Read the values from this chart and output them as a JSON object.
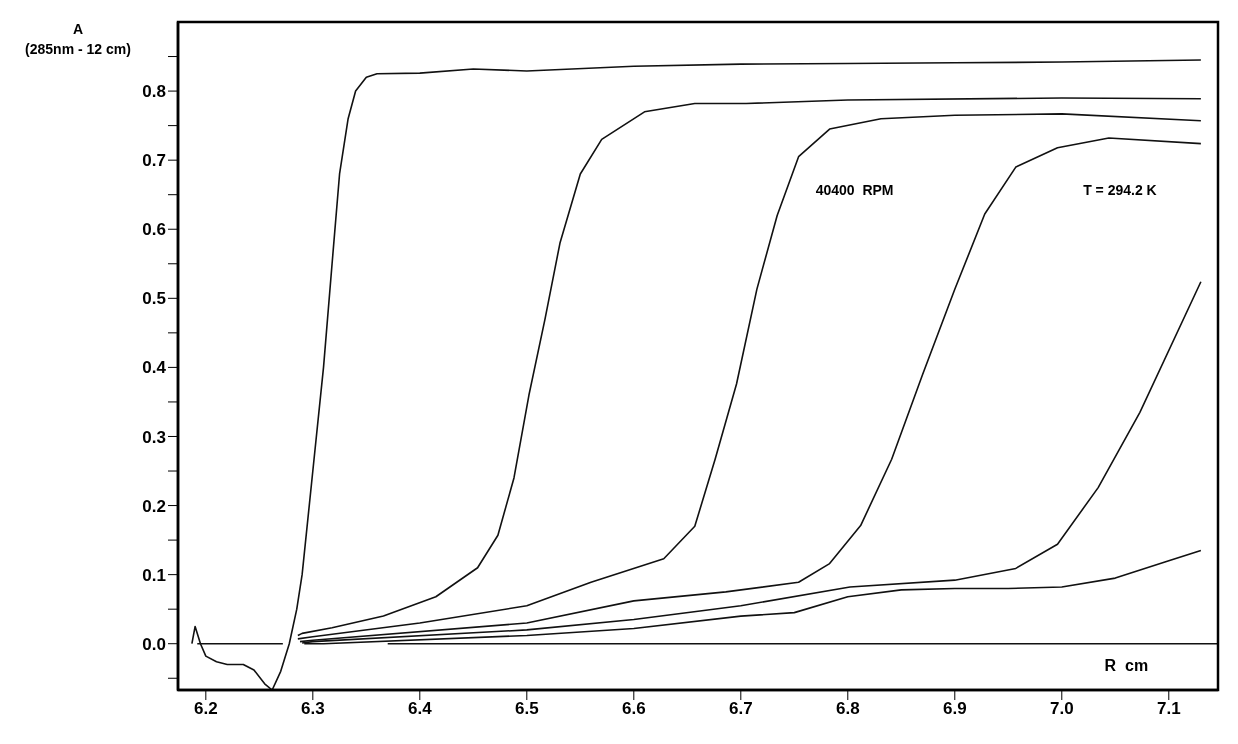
{
  "chart_data": {
    "type": "line",
    "xlabel": "R  cm",
    "ylabel": "A (285nm - 12 cm)",
    "annotations": [
      "40400  RPM",
      "T = 294.2 K"
    ],
    "xlim": [
      6.174,
      7.146
    ],
    "xticks": [
      6.2,
      6.3,
      6.4,
      6.5,
      6.6,
      6.7,
      6.8,
      6.9,
      {
        "value": 7,
        "label": "7.0"
      },
      7.1
    ],
    "ylim": [
      -0.067,
      0.9
    ],
    "yticks": [
      {
        "value": -0.05,
        "label": null
      },
      {
        "value": 0,
        "label": "0.0"
      },
      {
        "value": 0.05,
        "label": null
      },
      0.1,
      {
        "value": 0.15,
        "label": null
      },
      0.2,
      {
        "value": 0.25,
        "label": null
      },
      0.3,
      {
        "value": 0.35,
        "label": null
      },
      0.4,
      {
        "value": 0.45,
        "label": null
      },
      0.5,
      {
        "value": 0.55,
        "label": null
      },
      0.6,
      {
        "value": 0.65,
        "label": null
      },
      0.7,
      {
        "value": 0.75,
        "label": null
      },
      0.8,
      {
        "value": 0.85,
        "label": null
      }
    ],
    "grid": false,
    "legend": false,
    "marker": "none",
    "line_style": "solid",
    "series": [
      {
        "color": "#111111",
        "x": [
          6.192,
          6.272,
          6.3,
          6.37,
          7.146
        ],
        "values": [
          0,
          0,
          null,
          0,
          0
        ]
      },
      {
        "color": "#111111",
        "x": [
          6.187,
          6.19,
          6.195,
          6.2,
          6.21,
          6.22,
          6.235,
          6.245,
          6.255,
          6.262,
          6.27,
          6.278,
          6.285,
          6.29,
          6.3,
          6.31,
          6.318,
          6.325,
          6.333,
          6.34,
          6.35,
          6.36,
          6.4,
          6.45,
          6.5,
          6.6,
          6.7,
          6.8,
          6.9,
          7.0,
          7.13
        ],
        "values": [
          0,
          0.025,
          0,
          -0.018,
          -0.026,
          -0.03,
          -0.03,
          -0.038,
          -0.058,
          -0.067,
          -0.04,
          0,
          0.05,
          0.1,
          0.25,
          0.4,
          0.55,
          0.68,
          0.76,
          0.8,
          0.82,
          0.825,
          0.826,
          0.832,
          0.829,
          0.836,
          0.839,
          0.84,
          0.841,
          0.842,
          0.845
        ]
      },
      {
        "color": "#111111",
        "x": [
          6.286,
          6.29,
          6.318,
          6.366,
          6.415,
          6.454,
          6.473,
          6.488,
          6.502,
          6.517,
          6.531,
          6.55,
          6.57,
          6.61,
          6.657,
          6.705,
          6.8,
          7.0,
          7.13
        ],
        "values": [
          0.012,
          0.015,
          0.023,
          0.04,
          0.068,
          0.11,
          0.157,
          0.24,
          0.36,
          0.47,
          0.58,
          0.68,
          0.73,
          0.77,
          0.782,
          0.782,
          0.787,
          0.79,
          0.789
        ]
      },
      {
        "color": "#111111",
        "x": [
          6.286,
          6.3,
          6.4,
          6.5,
          6.56,
          6.628,
          6.657,
          6.676,
          6.696,
          6.715,
          6.734,
          6.754,
          6.783,
          6.831,
          6.9,
          7.0,
          7.13
        ],
        "values": [
          0.007,
          0.01,
          0.03,
          0.055,
          0.089,
          0.123,
          0.17,
          0.267,
          0.376,
          0.513,
          0.62,
          0.705,
          0.745,
          0.76,
          0.765,
          0.767,
          0.757
        ]
      },
      {
        "color": "#111111",
        "x": [
          6.288,
          6.3,
          6.5,
          6.6,
          6.686,
          6.754,
          6.783,
          6.812,
          6.841,
          6.87,
          6.9,
          6.928,
          6.957,
          6.996,
          7.044,
          7.13
        ],
        "values": [
          0.003,
          0.005,
          0.03,
          0.062,
          0.075,
          0.089,
          0.116,
          0.171,
          0.267,
          0.39,
          0.513,
          0.622,
          0.69,
          0.718,
          0.732,
          0.724
        ]
      },
      {
        "color": "#111111",
        "x": [
          6.29,
          6.3,
          6.5,
          6.6,
          6.7,
          6.802,
          6.9,
          6.957,
          6.996,
          7.034,
          7.073,
          7.13
        ],
        "values": [
          0.001,
          0.003,
          0.02,
          0.035,
          0.055,
          0.082,
          0.092,
          0.109,
          0.144,
          0.226,
          0.335,
          0.524
        ]
      },
      {
        "color": "#111111",
        "x": [
          6.292,
          6.31,
          6.5,
          6.6,
          6.7,
          6.75,
          6.8,
          6.85,
          6.9,
          6.95,
          7.0,
          7.05,
          7.1,
          7.13
        ],
        "values": [
          0,
          0,
          0.012,
          0.022,
          0.04,
          0.045,
          0.068,
          0.078,
          0.08,
          0.08,
          0.082,
          0.095,
          0.12,
          0.135
        ]
      }
    ]
  }
}
